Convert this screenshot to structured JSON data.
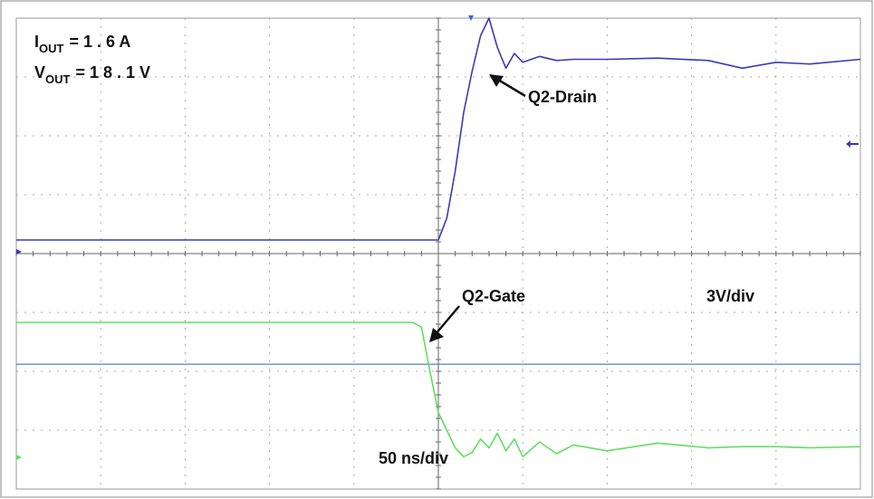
{
  "chart_data": {
    "type": "line",
    "annotations": {
      "iout": {
        "symbol": "I",
        "subscript": "OUT",
        "text": "= 1 . 6 A"
      },
      "vout": {
        "symbol": "V",
        "subscript": "OUT",
        "text": "= 1 8 . 1 V"
      },
      "vertical_scale": "3V/div",
      "time_scale": "50 ns/div"
    },
    "x": [
      -250,
      -200,
      -150,
      -100,
      -50,
      -15,
      -10,
      -5,
      0,
      5,
      10,
      15,
      20,
      25,
      30,
      35,
      40,
      45,
      50,
      60,
      70,
      80,
      100,
      130,
      160,
      180,
      200,
      220,
      250
    ],
    "series": [
      {
        "name": "Q2-Drain",
        "color": "#3a3ab8",
        "values": [
          4.23,
          4.23,
          4.23,
          4.23,
          4.23,
          4.23,
          4.23,
          4.23,
          4.23,
          4.6,
          5.4,
          6.4,
          7.1,
          7.7,
          8.0,
          7.5,
          7.15,
          7.4,
          7.25,
          7.35,
          7.28,
          7.3,
          7.3,
          7.32,
          7.28,
          7.15,
          7.25,
          7.22,
          7.3
        ]
      },
      {
        "name": "Q2-Gate",
        "color": "#5ee05e",
        "values": [
          2.83,
          2.83,
          2.83,
          2.83,
          2.83,
          2.83,
          2.75,
          2.0,
          1.3,
          1.0,
          0.7,
          0.55,
          0.62,
          0.85,
          0.7,
          0.95,
          0.65,
          0.85,
          0.55,
          0.8,
          0.6,
          0.75,
          0.65,
          0.78,
          0.7,
          0.72,
          0.72,
          0.7,
          0.72
        ]
      }
    ],
    "reference_line": {
      "value": 2.12,
      "color": "#5b8fd8"
    },
    "xlim": [
      -250,
      250
    ],
    "ylim": [
      0,
      8
    ],
    "grid": true
  }
}
